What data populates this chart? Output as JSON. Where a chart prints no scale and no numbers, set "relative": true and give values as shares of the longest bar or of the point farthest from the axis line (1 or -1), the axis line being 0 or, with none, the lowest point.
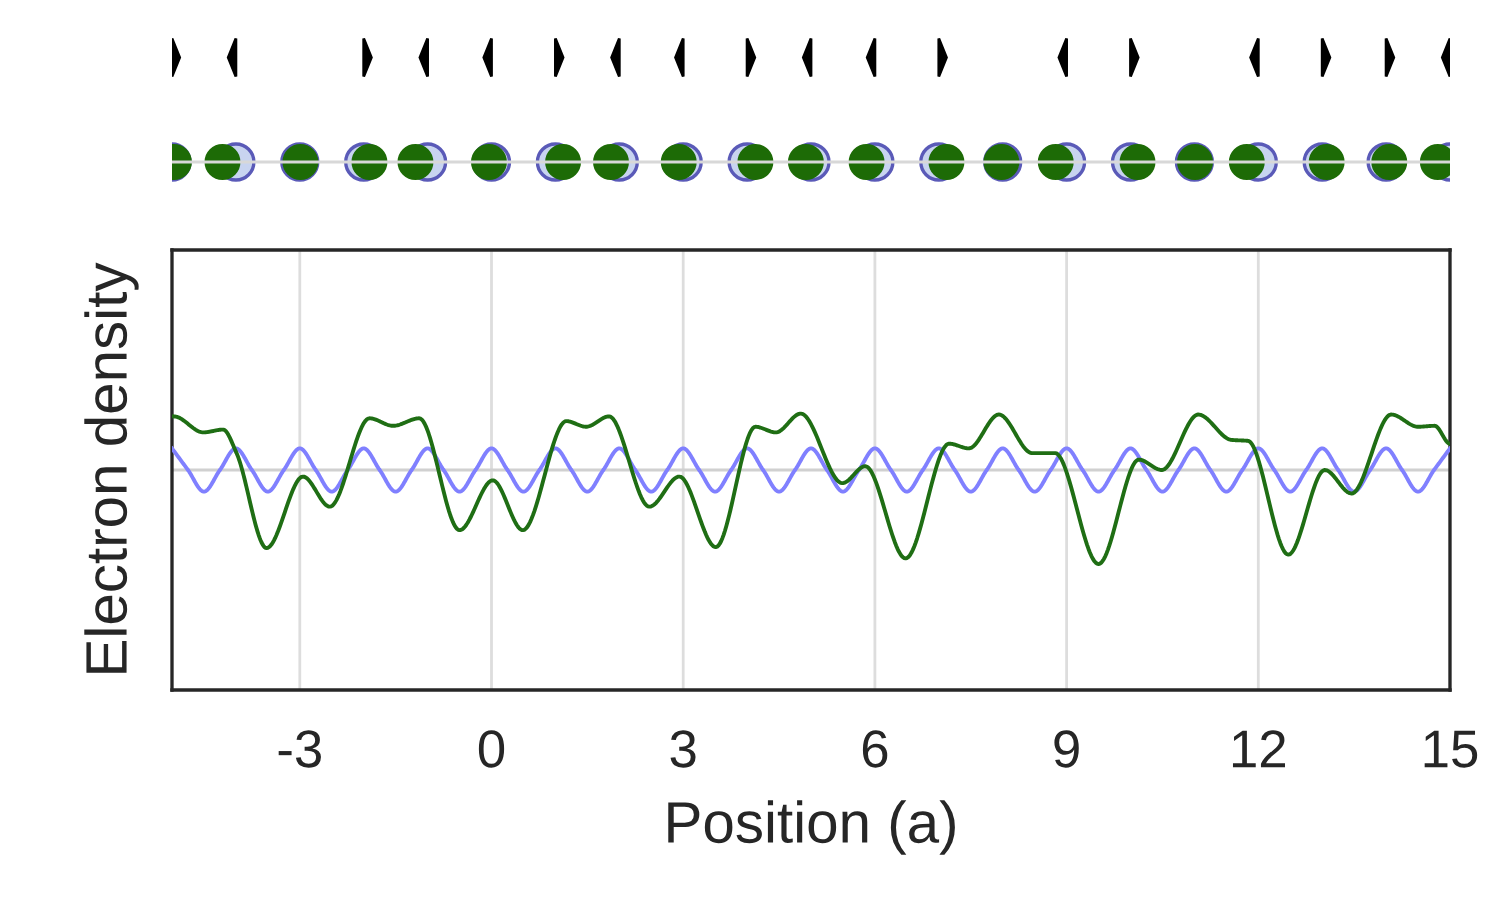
{
  "chart_data": {
    "type": "line",
    "relative": true,
    "xlabel": "Position (a)",
    "ylabel": "Electron density",
    "xlim": [
      -5,
      15
    ],
    "xticks": [
      -3,
      0,
      3,
      6,
      9,
      12,
      15
    ],
    "grid": "x",
    "line_style": "solid",
    "marker": "none",
    "series": [
      {
        "color": "#8080ff",
        "x": [
          -5,
          -4.75,
          -4.5,
          -4.25,
          -4,
          -3.75,
          -3.5,
          -3.25,
          -3,
          -2.75,
          -2.5,
          -2.25,
          -2,
          -1.75,
          -1.5,
          -1.25,
          -1,
          -0.75,
          -0.5,
          -0.25,
          0,
          0.25,
          0.5,
          0.75,
          1,
          1.25,
          1.5,
          1.75,
          2,
          2.25,
          2.5,
          2.75,
          3,
          3.25,
          3.5,
          3.75,
          4,
          4.25,
          4.5,
          4.75,
          5,
          5.25,
          5.5,
          5.75,
          6,
          6.25,
          6.5,
          6.75,
          7,
          7.25,
          7.5,
          7.75,
          8,
          8.25,
          8.5,
          8.75,
          9,
          9.25,
          9.5,
          9.75,
          10,
          10.25,
          10.5,
          10.75,
          11,
          11.25,
          11.5,
          11.75,
          12,
          12.25,
          12.5,
          12.75,
          13,
          13.25,
          13.5,
          13.75,
          14,
          14.25,
          14.5,
          14.75,
          15
        ],
        "values": [
          0.23,
          0,
          -0.23,
          0,
          0.23,
          0,
          -0.23,
          0,
          0.23,
          0,
          -0.23,
          0,
          0.23,
          0,
          -0.23,
          0,
          0.23,
          0,
          -0.23,
          0,
          0.23,
          0,
          -0.23,
          0,
          0.23,
          0,
          -0.23,
          0,
          0.23,
          0,
          -0.23,
          0,
          0.23,
          0,
          -0.23,
          0,
          0.23,
          0,
          -0.23,
          0,
          0.23,
          0,
          -0.23,
          0,
          0.23,
          0,
          -0.23,
          0,
          0.23,
          0,
          -0.23,
          0,
          0.23,
          0,
          -0.23,
          0,
          0.23,
          0,
          -0.23,
          0,
          0.23,
          0,
          -0.23,
          0,
          0.23,
          0,
          -0.23,
          0,
          0.23,
          0,
          -0.23,
          0,
          0.23,
          0,
          -0.23,
          0,
          0.23,
          0,
          -0.23,
          0,
          0.23
        ]
      },
      {
        "color": "#1f6e14",
        "x": [
          -4.97,
          -4.51,
          -4.2,
          -3.99,
          -3.52,
          -2.95,
          -2.53,
          -1.91,
          -1.54,
          -1.13,
          -0.5,
          0.02,
          0.49,
          1.17,
          1.48,
          1.84,
          2.47,
          2.94,
          3.51,
          4.13,
          4.45,
          4.84,
          5.49,
          5.85,
          6.48,
          7.16,
          7.47,
          7.94,
          8.46,
          8.82,
          9.5,
          10.13,
          10.49,
          11.06,
          11.58,
          11.84,
          12.47,
          13.04,
          13.46,
          14.08,
          14.5,
          14.76,
          15
        ],
        "values": [
          0.57,
          0.4,
          0.43,
          0.18,
          -0.83,
          -0.07,
          -0.39,
          0.55,
          0.47,
          0.55,
          -0.64,
          -0.11,
          -0.64,
          0.52,
          0.46,
          0.57,
          -0.39,
          -0.07,
          -0.82,
          0.46,
          0.4,
          0.6,
          -0.14,
          0.04,
          -0.94,
          0.28,
          0.23,
          0.59,
          0.18,
          0.18,
          -1,
          0.11,
          0,
          0.59,
          0.32,
          0.31,
          -0.9,
          0,
          -0.25,
          0.59,
          0.46,
          0.47,
          0.28
        ]
      }
    ]
  }
}
